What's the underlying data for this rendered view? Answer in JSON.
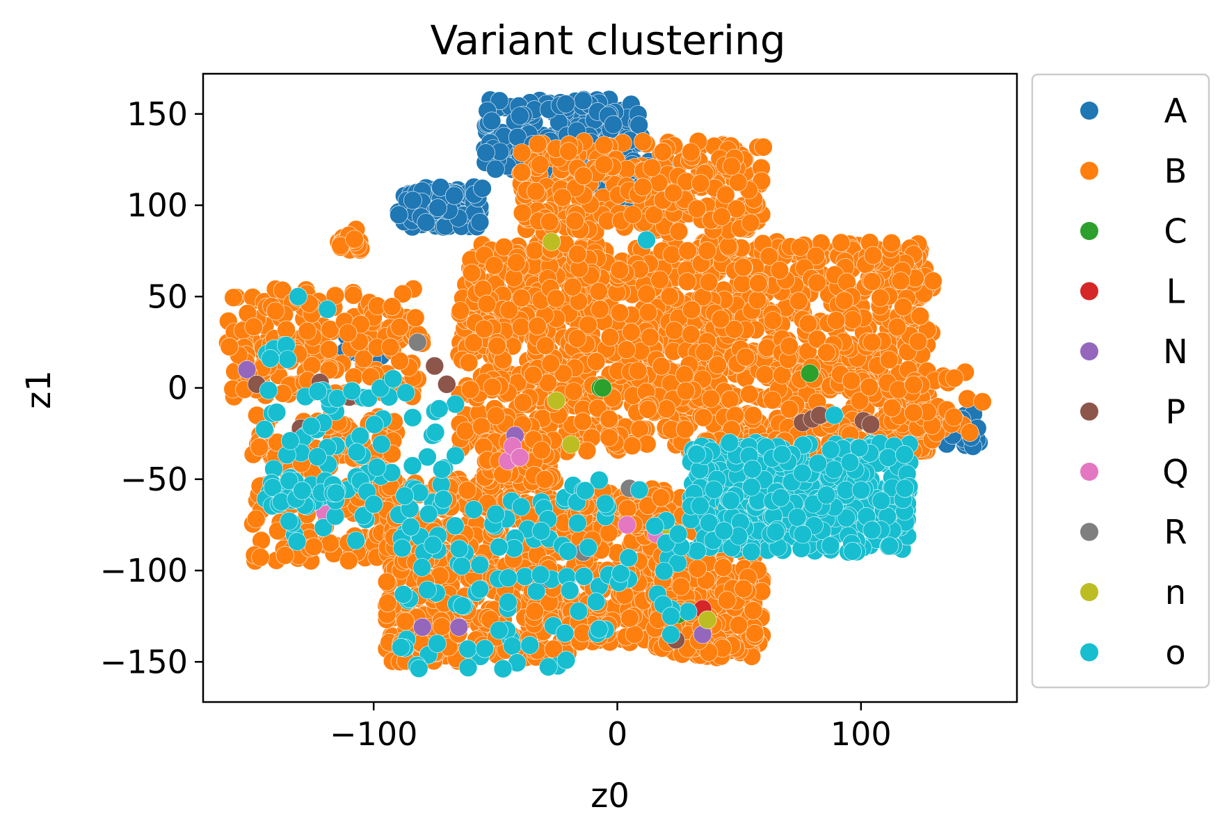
{
  "chart_data": {
    "type": "scatter",
    "title": "Variant clustering",
    "xlabel": "z0",
    "ylabel": "z1",
    "xlim": [
      -170,
      164
    ],
    "ylim": [
      -172,
      172
    ],
    "x_ticks": [
      -100,
      0,
      100
    ],
    "x_tick_labels": [
      "−100",
      "0",
      "100"
    ],
    "y_ticks": [
      150,
      100,
      50,
      0,
      -50,
      -100,
      -150
    ],
    "y_tick_labels": [
      "150",
      "100",
      "50",
      "0",
      "−50",
      "−100",
      "−150"
    ],
    "grid": false,
    "legend_position": "outside-right",
    "legend": [
      "A",
      "B",
      "C",
      "L",
      "N",
      "P",
      "Q",
      "R",
      "n",
      "o"
    ],
    "series": [
      {
        "name": "A",
        "color": "#1f77b4",
        "clusters": [
          {
            "x": [
              -55,
              10
            ],
            "y": [
              118,
              158
            ],
            "n": 200
          },
          {
            "x": [
              -90,
              -55
            ],
            "y": [
              88,
              110
            ],
            "n": 100
          },
          {
            "x": [
              -15,
              25
            ],
            "y": [
              100,
              125
            ],
            "n": 60
          },
          {
            "x": [
              -112,
              -95
            ],
            "y": [
              15,
              30
            ],
            "n": 15
          },
          {
            "x": [
              135,
              150
            ],
            "y": [
              -32,
              -12
            ],
            "n": 25
          }
        ]
      },
      {
        "name": "B",
        "color": "#ff7f0e",
        "clusters": [
          {
            "x": [
              -65,
              130
            ],
            "y": [
              -35,
              80
            ],
            "n": 1400
          },
          {
            "x": [
              -40,
              60
            ],
            "y": [
              85,
              135
            ],
            "n": 300
          },
          {
            "x": [
              -160,
              -80
            ],
            "y": [
              -5,
              55
            ],
            "n": 180
          },
          {
            "x": [
              -150,
              -90
            ],
            "y": [
              -95,
              -15
            ],
            "n": 200
          },
          {
            "x": [
              -95,
              -20
            ],
            "y": [
              -150,
              -50
            ],
            "n": 420
          },
          {
            "x": [
              -20,
              20
            ],
            "y": [
              -140,
              -55
            ],
            "n": 200
          },
          {
            "x": [
              15,
              60
            ],
            "y": [
              -148,
              -90
            ],
            "n": 220
          },
          {
            "x": [
              -55,
              -25
            ],
            "y": [
              -52,
              -28
            ],
            "n": 60
          },
          {
            "x": [
              -115,
              -105
            ],
            "y": [
              75,
              88
            ],
            "n": 20
          },
          {
            "x": [
              110,
              150
            ],
            "y": [
              -25,
              10
            ],
            "n": 40
          },
          {
            "x": [
              0,
              40
            ],
            "y": [
              -80,
              -55
            ],
            "n": 60
          },
          {
            "x": [
              40,
              60
            ],
            "y": [
              -85,
              -65
            ],
            "n": 25
          }
        ]
      },
      {
        "name": "C",
        "color": "#2ca02c",
        "points": [
          [
            -7,
            0
          ],
          [
            -6,
            0
          ],
          [
            79,
            8
          ],
          [
            -93,
            4
          ],
          [
            25,
            -124
          ]
        ]
      },
      {
        "name": "L",
        "color": "#d62728",
        "points": [
          [
            35,
            -121
          ]
        ]
      },
      {
        "name": "N",
        "color": "#9467bd",
        "points": [
          [
            -152,
            10
          ],
          [
            50,
            -82
          ],
          [
            -80,
            -131
          ],
          [
            -65,
            -131
          ],
          [
            35,
            -135
          ],
          [
            -42,
            -26
          ]
        ]
      },
      {
        "name": "P",
        "color": "#8c564b",
        "points": [
          [
            -148,
            2
          ],
          [
            -75,
            12
          ],
          [
            -70,
            2
          ],
          [
            -110,
            -5
          ],
          [
            -130,
            -22
          ],
          [
            -122,
            3
          ],
          [
            76,
            -19
          ],
          [
            80,
            -17
          ],
          [
            83,
            -15
          ],
          [
            101,
            -18
          ],
          [
            104,
            -20
          ],
          [
            -28,
            -105
          ],
          [
            24,
            -138
          ],
          [
            -130,
            -30
          ]
        ]
      },
      {
        "name": "Q",
        "color": "#e377c2",
        "points": [
          [
            -45,
            -40
          ],
          [
            -43,
            -32
          ],
          [
            -40,
            -38
          ],
          [
            4,
            -75
          ],
          [
            16,
            -80
          ],
          [
            -120,
            -68
          ]
        ]
      },
      {
        "name": "R",
        "color": "#7f7f7f",
        "points": [
          [
            -82,
            25
          ],
          [
            -14,
            -90
          ],
          [
            5,
            -55
          ]
        ]
      },
      {
        "name": "n",
        "color": "#bcbd22",
        "points": [
          [
            -27,
            80
          ],
          [
            -25,
            -7
          ],
          [
            -19,
            -31
          ],
          [
            20,
            -75
          ],
          [
            37,
            -127
          ]
        ]
      },
      {
        "name": "o",
        "color": "#17becf",
        "clusters": [
          {
            "x": [
              30,
              120
            ],
            "y": [
              -90,
              -30
            ],
            "n": 450
          },
          {
            "x": [
              -145,
              -65
            ],
            "y": [
              -85,
              0
            ],
            "n": 90
          },
          {
            "x": [
              -90,
              -20
            ],
            "y": [
              -155,
              -60
            ],
            "n": 80
          },
          {
            "x": [
              -20,
              30
            ],
            "y": [
              -135,
              -50
            ],
            "n": 35
          },
          {
            "x": [
              -148,
              -135
            ],
            "y": [
              15,
              25
            ],
            "n": 10
          },
          {
            "x": [
              -145,
              -115
            ],
            "y": [
              -65,
              -50
            ],
            "n": 30
          }
        ],
        "points": [
          [
            12,
            81
          ],
          [
            -131,
            50
          ],
          [
            -119,
            43
          ],
          [
            89,
            -15
          ],
          [
            -92,
            5
          ],
          [
            22,
            -125
          ],
          [
            20,
            -85
          ],
          [
            25,
            -80
          ]
        ]
      }
    ]
  }
}
